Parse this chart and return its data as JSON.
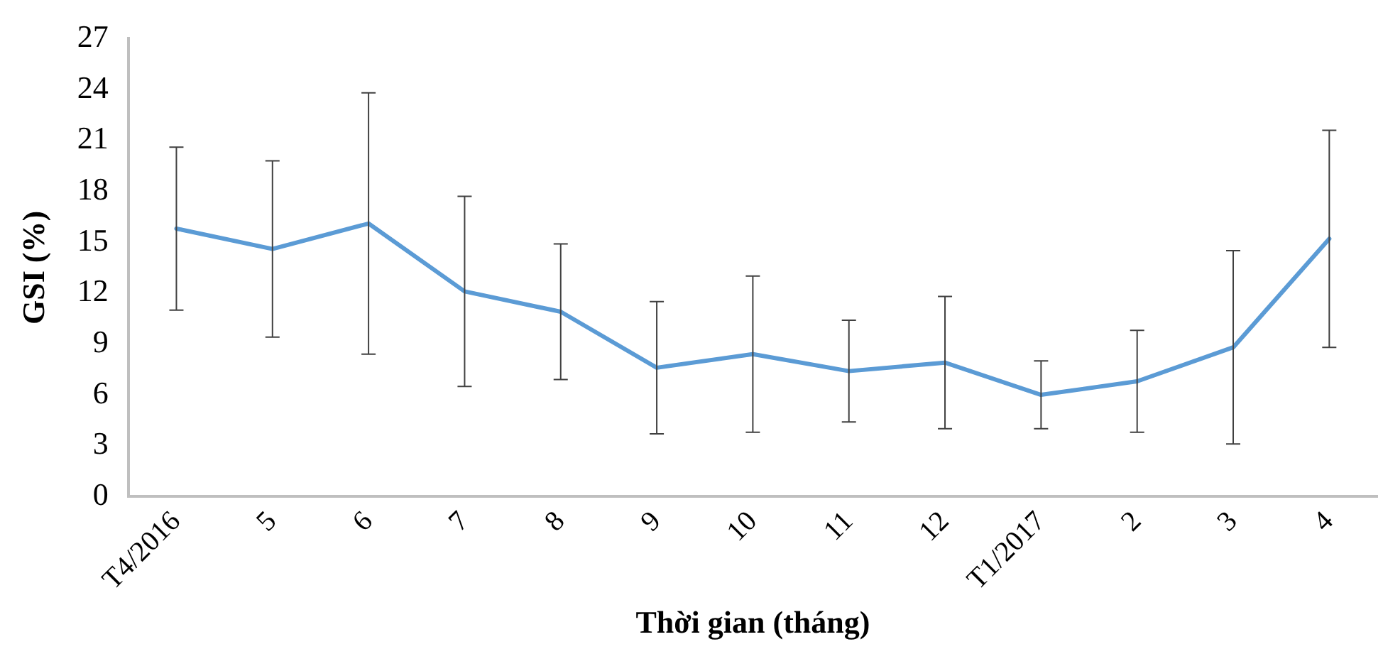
{
  "chart_data": {
    "type": "line",
    "xlabel": "Thời gian (tháng)",
    "ylabel": "GSI (%)",
    "categories": [
      "T4/2016",
      "5",
      "6",
      "7",
      "8",
      "9",
      "10",
      "11",
      "12",
      "T1/2017",
      "2",
      "3",
      "4"
    ],
    "series": [
      {
        "color": "#5b9bd5",
        "values": [
          15.8,
          14.6,
          16.1,
          12.1,
          10.9,
          7.6,
          8.4,
          7.4,
          7.9,
          6.0,
          6.8,
          8.8,
          15.2
        ],
        "errors": [
          4.8,
          5.2,
          7.7,
          5.6,
          4.0,
          3.9,
          4.6,
          3.0,
          3.9,
          2.0,
          3.0,
          5.7,
          6.4
        ]
      }
    ],
    "ylim": [
      0,
      27
    ],
    "yticks": [
      0,
      3,
      6,
      9,
      12,
      15,
      18,
      21,
      24,
      27
    ],
    "grid": false,
    "legend": false,
    "marker": "none",
    "line_style": "solid"
  }
}
